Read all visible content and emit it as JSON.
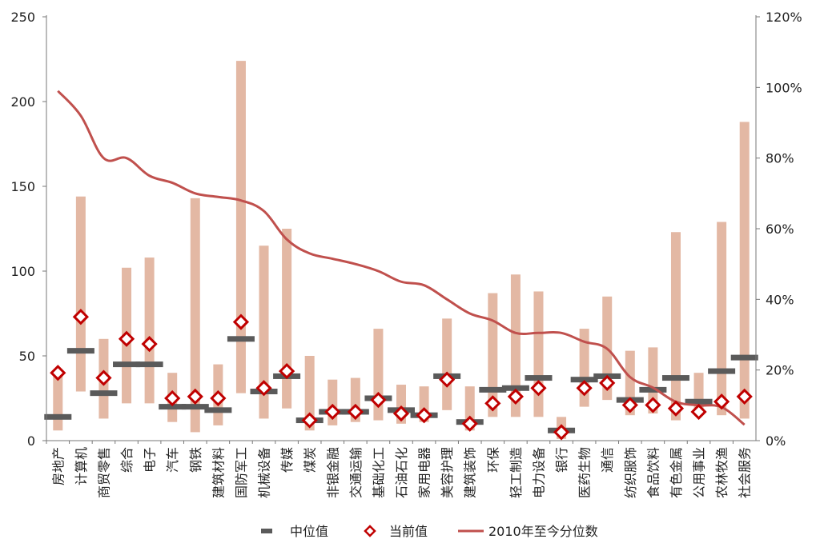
{
  "chart_data": {
    "type": "bar",
    "title": "",
    "xlabel": "",
    "ylabel": "",
    "ylim": [
      0,
      250
    ],
    "yticks": [
      "0",
      "50",
      "100",
      "150",
      "200",
      "250"
    ],
    "y2lim": [
      0,
      1.2
    ],
    "y2ticks": [
      "0%",
      "20%",
      "40%",
      "60%",
      "80%",
      "100%",
      "120%"
    ],
    "grid": false,
    "legend_position": "bottom",
    "categories": [
      "房地产",
      "计算机",
      "商贸零售",
      "综合",
      "电子",
      "汽车",
      "钢铁",
      "建筑材料",
      "国防军工",
      "机械设备",
      "传媒",
      "煤炭",
      "非银金融",
      "交通运输",
      "基础化工",
      "石油石化",
      "家用电器",
      "美容护理",
      "建筑装饰",
      "环保",
      "轻工制造",
      "电力设备",
      "银行",
      "医药生物",
      "通信",
      "纺织服饰",
      "食品饮料",
      "有色金属",
      "公用事业",
      "农林牧渔",
      "社会服务"
    ],
    "series": [
      {
        "name": "",
        "type": "range_bar",
        "axis": "left",
        "color": "#e3b8a4",
        "low": [
          6,
          29,
          13,
          22,
          22,
          11,
          5,
          9,
          28,
          13,
          19,
          6,
          9,
          11,
          12,
          10,
          11,
          18,
          6,
          14,
          14,
          14,
          1,
          20,
          24,
          15,
          16,
          12,
          15,
          15,
          13
        ],
        "high": [
          40,
          144,
          60,
          102,
          108,
          40,
          143,
          45,
          224,
          115,
          125,
          50,
          36,
          37,
          66,
          33,
          32,
          72,
          32,
          87,
          98,
          88,
          14,
          66,
          85,
          53,
          55,
          123,
          40,
          129,
          188
        ]
      },
      {
        "name": "中位值",
        "type": "median_marker",
        "axis": "left",
        "color": "#5a5a5a",
        "values": [
          14,
          53,
          28,
          45,
          45,
          20,
          20,
          18,
          60,
          29,
          38,
          12,
          17,
          17,
          25,
          18,
          15,
          38,
          11,
          30,
          31,
          37,
          6,
          36,
          38,
          24,
          30,
          37,
          23,
          41,
          49
        ]
      },
      {
        "name": "当前值",
        "type": "scatter",
        "axis": "left",
        "color": "#c00000",
        "values": [
          40,
          73,
          37,
          60,
          57,
          25,
          26,
          25,
          70,
          31,
          41,
          12,
          17,
          17,
          24,
          16,
          15,
          36,
          10,
          22,
          26,
          31,
          5,
          31,
          34,
          21,
          21,
          19,
          17,
          23,
          26
        ]
      },
      {
        "name": "2010年至今分位数",
        "type": "line",
        "axis": "right",
        "color": "#c0504d",
        "values": [
          0.99,
          0.92,
          0.8,
          0.8,
          0.75,
          0.73,
          0.7,
          0.69,
          0.68,
          0.65,
          0.57,
          0.53,
          0.515,
          0.5,
          0.48,
          0.45,
          0.44,
          0.4,
          0.36,
          0.34,
          0.305,
          0.305,
          0.305,
          0.28,
          0.26,
          0.18,
          0.15,
          0.11,
          0.1,
          0.095,
          0.045
        ]
      }
    ]
  }
}
